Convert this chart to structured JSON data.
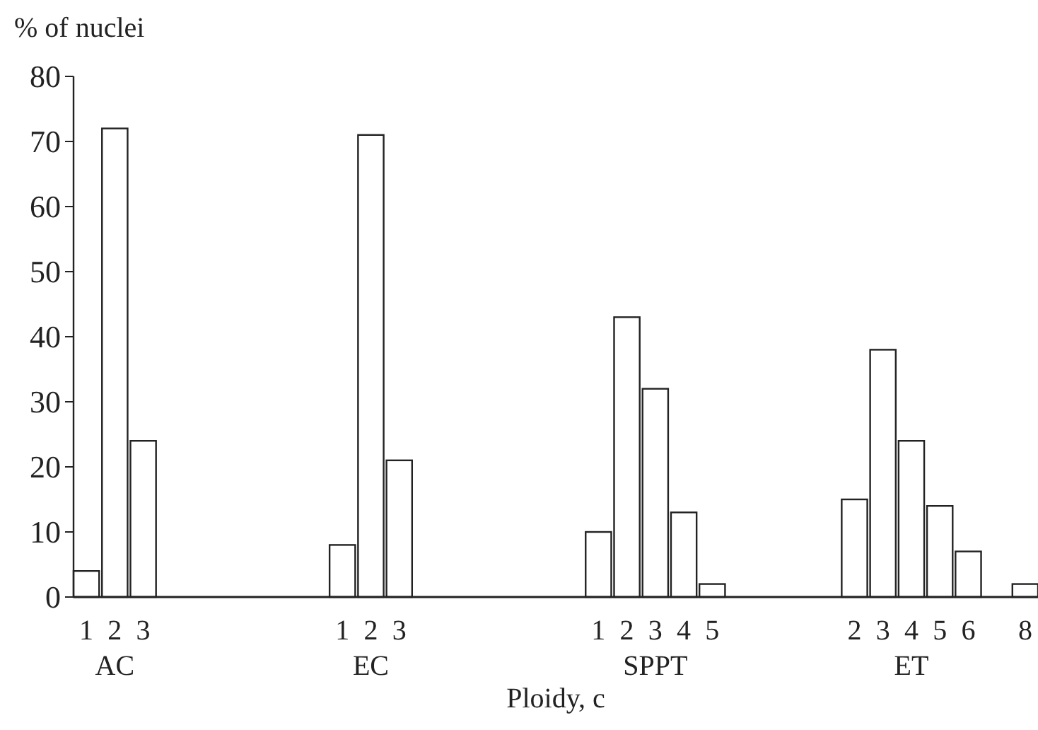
{
  "chart_data": {
    "type": "bar",
    "xlabel": "Ploidy, c",
    "ylabel": "% of nuclei",
    "categories": [
      "1",
      "2",
      "3",
      null,
      null,
      null,
      null,
      null,
      null,
      "1",
      "2",
      "3",
      null,
      null,
      null,
      null,
      null,
      null,
      "1",
      "2",
      "3",
      "4",
      "5",
      null,
      null,
      null,
      null,
      "2",
      "3",
      "4",
      "5",
      "6",
      null,
      "8"
    ],
    "values": [
      4,
      72,
      24,
      null,
      null,
      null,
      null,
      null,
      null,
      8,
      71,
      21,
      null,
      null,
      null,
      null,
      null,
      null,
      10,
      43,
      32,
      13,
      2,
      null,
      null,
      null,
      null,
      15,
      38,
      24,
      14,
      7,
      null,
      2
    ],
    "color": "#ffffff",
    "annotations": [
      "AC",
      "EC",
      "SPPT",
      "ET"
    ],
    "ylim": [
      0,
      80
    ],
    "yticks": [
      0,
      10,
      20,
      30,
      40,
      50,
      60,
      70,
      80
    ],
    "grid": false
  }
}
